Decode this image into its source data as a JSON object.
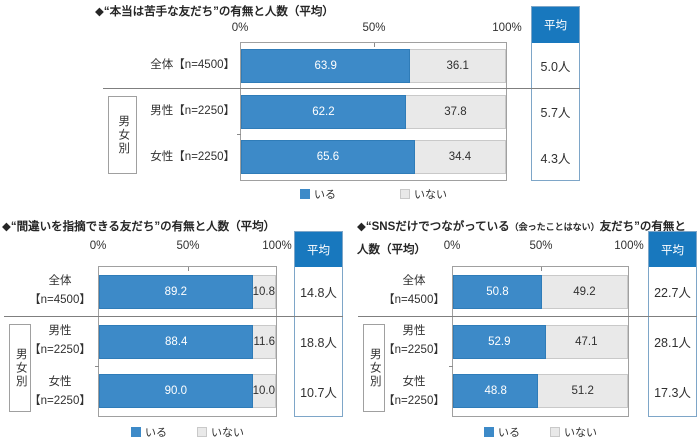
{
  "colors": {
    "bar_blue": "#3D8AC8",
    "bar_blue_border": "#2F7CB8",
    "bar_gray": "#E9E9E9",
    "bar_gray_border": "#C9C9C9",
    "avg_header_blue": "#1878BE",
    "avg_box_border": "#7EA6C8",
    "plot_border": "#A0A0A0",
    "divider_line": "#7F7F7F",
    "text": "#303030"
  },
  "chart_data": [
    {
      "type": "bar",
      "orientation": "horizontal",
      "stacked": true,
      "title_parts": [
        "◆“本当は苦手な友だち”の有無と人数（平均）",
        "",
        "",
        ""
      ],
      "x_ticks": [
        "0%",
        "50%",
        "100%"
      ],
      "xlim": [
        0,
        100
      ],
      "grid": false,
      "legend_position": "bottom",
      "avg_header": "平均",
      "group_label": "男女別",
      "legend": [
        "いる",
        "いない"
      ],
      "categories": [
        "全体【n=4500】",
        "男性【n=2250】",
        "女性【n=2250】"
      ],
      "category_lines": [
        [
          "全体【n=4500】",
          ""
        ],
        [
          "男性【n=2250】",
          ""
        ],
        [
          "女性【n=2250】",
          ""
        ]
      ],
      "series": [
        {
          "name": "いる",
          "values": [
            63.9,
            62.2,
            65.6
          ],
          "values_display": [
            "63.9",
            "62.2",
            "65.6"
          ]
        },
        {
          "name": "いない",
          "values": [
            36.1,
            37.8,
            34.4
          ],
          "values_display": [
            "36.1",
            "37.8",
            "34.4"
          ]
        }
      ],
      "averages": [
        "5.0人",
        "5.7人",
        "4.3人"
      ]
    },
    {
      "type": "bar",
      "orientation": "horizontal",
      "stacked": true,
      "title_parts": [
        "◆“間違いを指摘できる友だち”の有無と人数（平均）",
        "",
        "",
        ""
      ],
      "x_ticks": [
        "0%",
        "50%",
        "100%"
      ],
      "xlim": [
        0,
        100
      ],
      "grid": false,
      "legend_position": "bottom",
      "avg_header": "平均",
      "group_label": "男女別",
      "legend": [
        "いる",
        "いない"
      ],
      "categories": [
        "全体【n=4500】",
        "男性【n=2250】",
        "女性【n=2250】"
      ],
      "category_lines": [
        [
          "全体",
          "【n=4500】"
        ],
        [
          "男性",
          "【n=2250】"
        ],
        [
          "女性",
          "【n=2250】"
        ]
      ],
      "series": [
        {
          "name": "いる",
          "values": [
            89.2,
            88.4,
            90.0
          ],
          "values_display": [
            "89.2",
            "88.4",
            "90.0"
          ]
        },
        {
          "name": "いない",
          "values": [
            10.8,
            11.6,
            10.0
          ],
          "values_display": [
            "10.8",
            "11.6",
            "10.0"
          ]
        }
      ],
      "averages": [
        "14.8人",
        "18.8人",
        "10.7人"
      ]
    },
    {
      "type": "bar",
      "orientation": "horizontal",
      "stacked": true,
      "title_parts": [
        "◆“SNSだけでつながっている",
        "（会ったことはない）",
        "友だち”の有無と",
        "人数（平均）"
      ],
      "x_ticks": [
        "0%",
        "50%",
        "100%"
      ],
      "xlim": [
        0,
        100
      ],
      "grid": false,
      "legend_position": "bottom",
      "avg_header": "平均",
      "group_label": "男女別",
      "legend": [
        "いる",
        "いない"
      ],
      "categories": [
        "全体【n=4500】",
        "男性【n=2250】",
        "女性【n=2250】"
      ],
      "category_lines": [
        [
          "全体",
          "【n=4500】"
        ],
        [
          "男性",
          "【n=2250】"
        ],
        [
          "女性",
          "【n=2250】"
        ]
      ],
      "series": [
        {
          "name": "いる",
          "values": [
            50.8,
            52.9,
            48.8
          ],
          "values_display": [
            "50.8",
            "52.9",
            "48.8"
          ]
        },
        {
          "name": "いない",
          "values": [
            49.2,
            47.1,
            51.2
          ],
          "values_display": [
            "49.2",
            "47.1",
            "51.2"
          ]
        }
      ],
      "averages": [
        "22.7人",
        "28.1人",
        "17.3人"
      ]
    }
  ]
}
